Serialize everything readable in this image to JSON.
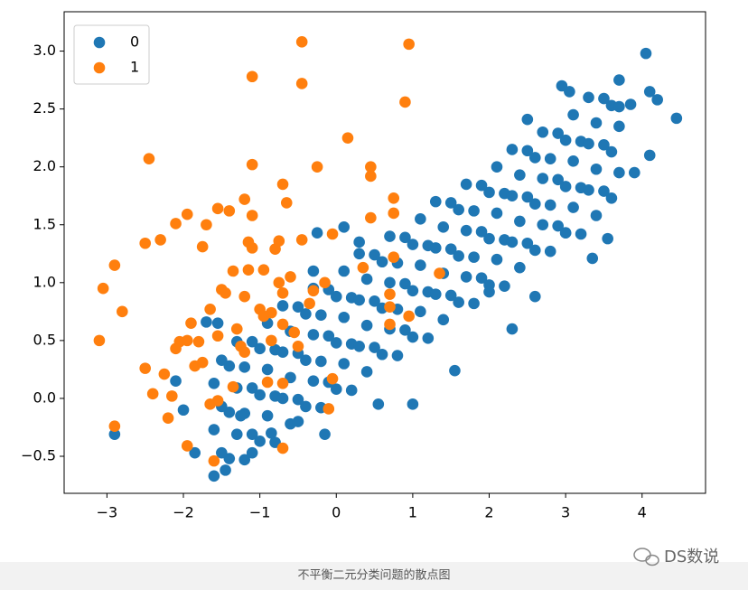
{
  "chart_data": {
    "type": "scatter",
    "xlim": [
      -3.56,
      4.83
    ],
    "ylim": [
      -0.82,
      3.34
    ],
    "xticks": [
      {
        "value": -3,
        "label": "−3"
      },
      {
        "value": -2,
        "label": "−2"
      },
      {
        "value": -1,
        "label": "−1"
      },
      0,
      1,
      2,
      3,
      4
    ],
    "yticks": [
      {
        "value": -0.5,
        "label": "−0.5"
      },
      {
        "value": 0,
        "label": "0.0"
      },
      0.5,
      {
        "value": 1,
        "label": "1.0"
      },
      1.5,
      {
        "value": 2,
        "label": "2.0"
      },
      2.5,
      {
        "value": 3,
        "label": "3.0"
      }
    ],
    "legend": "upper left",
    "series": [
      {
        "name": "0",
        "color": "#1f77b4",
        "x": [
          -1.6,
          -1.4,
          -1.2,
          -1.0,
          -0.8,
          -0.6,
          -0.4,
          -0.2,
          0,
          0.2,
          0.4,
          0.6,
          0.8,
          1.0,
          1.2,
          1.4,
          1.6,
          1.8,
          2.0,
          2.2,
          2.4,
          2.6,
          2.8,
          3.0,
          3.2,
          3.4,
          3.6,
          -1.6,
          -1.4,
          -1.2,
          -1.0,
          -0.8,
          -0.6,
          -0.4,
          -0.2,
          0,
          0.2,
          0.4,
          0.6,
          0.8,
          1.0,
          1.2,
          1.4,
          1.6,
          1.8,
          2.0,
          2.2,
          2.4,
          2.6,
          2.8,
          3.0,
          3.2,
          3.4,
          3.6,
          -1.6,
          -1.4,
          -1.2,
          -1.0,
          -0.8,
          -0.6,
          -0.4,
          -0.2,
          0,
          0.2,
          0.4,
          0.6,
          0.8,
          1.0,
          1.2,
          1.4,
          1.6,
          1.8,
          2.0,
          2.2,
          2.4,
          2.6,
          2.8,
          3.0,
          3.2,
          3.4,
          3.6,
          -1.5,
          -1.3,
          -1.1,
          -0.9,
          -0.7,
          -0.5,
          -0.3,
          -0.1,
          0.1,
          0.3,
          0.5,
          0.7,
          0.9,
          1.1,
          1.3,
          1.5,
          1.7,
          1.9,
          2.1,
          2.3,
          2.5,
          2.7,
          2.9,
          3.1,
          3.3,
          3.5,
          3.7,
          -1.5,
          -1.3,
          -1.1,
          -0.9,
          -0.7,
          -0.5,
          -0.3,
          -0.1,
          0.1,
          0.3,
          0.5,
          0.7,
          0.9,
          1.1,
          1.3,
          1.5,
          1.7,
          1.9,
          2.1,
          2.3,
          2.5,
          2.7,
          2.9,
          3.1,
          3.3,
          3.5,
          3.7,
          -1.5,
          -1.3,
          -1.1,
          -0.9,
          -0.7,
          -0.5,
          -0.3,
          -0.1,
          0.1,
          0.3,
          0.5,
          0.7,
          0.9,
          1.1,
          1.3,
          1.5,
          1.7,
          1.9,
          2.1,
          2.3,
          2.5,
          2.7,
          2.9,
          3.1,
          3.3,
          3.5,
          3.7,
          -2.9,
          -1.45,
          -1.85,
          -1.1,
          -2.0,
          -2.1,
          -1.7,
          -1.55,
          -0.25,
          0.1,
          -0.15,
          1.0,
          1.55,
          2.3,
          2.6,
          3.0,
          3.35,
          4.05,
          4.1,
          4.2,
          4.45,
          3.85,
          3.9,
          4.1,
          2.5,
          2.95,
          3.05,
          3.7,
          -0.5,
          0.55,
          -0.85,
          -1.25,
          3.55,
          2.0,
          -0.3,
          0.3
        ],
        "values": [
          -0.67,
          -0.52,
          -0.53,
          -0.37,
          -0.38,
          -0.22,
          -0.07,
          -0.08,
          0.08,
          0.07,
          0.23,
          0.38,
          0.37,
          0.53,
          0.52,
          0.68,
          0.83,
          0.82,
          0.98,
          0.97,
          1.13,
          1.28,
          1.27,
          1.43,
          1.42,
          1.58,
          1.73,
          -0.27,
          -0.12,
          -0.13,
          0.03,
          0.02,
          0.18,
          0.33,
          0.32,
          0.48,
          0.47,
          0.63,
          0.78,
          0.77,
          0.93,
          0.92,
          1.08,
          1.23,
          1.22,
          1.38,
          1.37,
          1.53,
          1.68,
          1.67,
          1.83,
          1.82,
          1.98,
          2.13,
          0.13,
          0.28,
          0.27,
          0.43,
          0.42,
          0.58,
          0.73,
          0.72,
          0.88,
          0.87,
          1.03,
          1.18,
          1.17,
          1.33,
          1.32,
          1.48,
          1.63,
          1.62,
          1.78,
          1.77,
          1.93,
          2.08,
          2.07,
          2.23,
          2.22,
          2.38,
          2.53,
          -0.47,
          -0.31,
          -0.31,
          -0.15,
          0.0,
          -0.01,
          0.15,
          0.14,
          0.3,
          0.45,
          0.44,
          0.6,
          0.59,
          0.75,
          0.9,
          0.89,
          1.05,
          1.04,
          1.2,
          1.35,
          1.34,
          1.5,
          1.49,
          1.65,
          1.8,
          1.79,
          1.95,
          -0.07,
          0.09,
          0.09,
          0.25,
          0.4,
          0.39,
          0.55,
          0.54,
          0.7,
          0.85,
          0.84,
          1.0,
          0.99,
          1.15,
          1.3,
          1.29,
          1.45,
          1.44,
          1.6,
          1.75,
          1.74,
          1.9,
          1.89,
          2.05,
          2.2,
          2.19,
          2.35,
          0.33,
          0.49,
          0.49,
          0.65,
          0.8,
          0.79,
          0.95,
          0.94,
          1.1,
          1.25,
          1.24,
          1.4,
          1.39,
          1.55,
          1.7,
          1.69,
          1.85,
          1.84,
          2.0,
          2.15,
          2.14,
          2.3,
          2.29,
          2.45,
          2.6,
          2.59,
          2.75,
          -0.31,
          -0.62,
          -0.47,
          -0.47,
          -0.1,
          0.15,
          0.66,
          0.65,
          1.43,
          1.48,
          -0.31,
          -0.05,
          0.24,
          0.6,
          0.88,
          1.43,
          1.21,
          2.98,
          2.65,
          2.58,
          2.42,
          2.54,
          1.95,
          2.1,
          2.41,
          2.7,
          2.65,
          2.52,
          -0.2,
          -0.05,
          -0.3,
          -0.15,
          1.38,
          0.92,
          1.1,
          1.35
        ]
      },
      {
        "name": "1",
        "color": "#ff7f0e",
        "x": [
          -3.1,
          -3.05,
          -2.9,
          -2.8,
          -2.9,
          -2.5,
          -2.45,
          -2.3,
          -2.5,
          -2.4,
          -2.25,
          -2.2,
          -2.15,
          -2.1,
          -2.1,
          -2.05,
          -1.95,
          -1.95,
          -1.85,
          -1.75,
          -1.9,
          -1.8,
          -1.55,
          -1.75,
          -1.7,
          -1.55,
          -1.65,
          -1.5,
          -1.4,
          -1.35,
          -1.45,
          -1.3,
          -1.25,
          -1.2,
          -1.15,
          -1.2,
          -1.1,
          -1.1,
          -1.1,
          -1.1,
          -1.2,
          -1.15,
          -1.0,
          -0.95,
          -0.95,
          -0.85,
          -0.8,
          -0.75,
          -0.7,
          -0.65,
          -0.85,
          -0.75,
          -0.7,
          -0.7,
          -0.6,
          -0.55,
          -0.5,
          -0.45,
          -0.45,
          -0.45,
          -0.25,
          -0.15,
          -0.3,
          -0.35,
          -0.05,
          0.15,
          0.35,
          0.45,
          0.45,
          0.45,
          0.75,
          0.75,
          0.7,
          0.7,
          0.7,
          0.75,
          0.9,
          0.95,
          0.95,
          1.35,
          -0.05,
          -0.1,
          -0.7,
          -0.7,
          -1.6,
          -1.95,
          -1.35,
          -1.55,
          -1.65,
          -0.9
        ],
        "values": [
          0.5,
          0.95,
          1.15,
          0.75,
          -0.24,
          1.34,
          2.07,
          1.37,
          0.26,
          0.04,
          0.21,
          -0.17,
          0.02,
          1.51,
          0.43,
          0.49,
          1.59,
          0.5,
          0.28,
          0.31,
          0.65,
          0.49,
          0.54,
          1.31,
          1.5,
          1.64,
          0.77,
          0.94,
          1.62,
          1.1,
          0.91,
          0.6,
          0.45,
          1.72,
          1.35,
          0.4,
          2.78,
          2.02,
          1.58,
          1.3,
          0.88,
          1.11,
          0.77,
          0.71,
          1.11,
          0.74,
          1.29,
          1.36,
          1.85,
          1.69,
          0.5,
          1.0,
          0.91,
          0.64,
          1.05,
          0.57,
          0.45,
          2.72,
          3.08,
          1.37,
          2.0,
          1.0,
          0.93,
          0.82,
          1.42,
          2.25,
          1.13,
          2.0,
          1.92,
          1.56,
          1.73,
          1.6,
          0.9,
          0.79,
          0.64,
          1.22,
          2.56,
          3.06,
          0.71,
          1.08,
          0.17,
          -0.09,
          0.13,
          -0.43,
          -0.54,
          -0.41,
          0.1,
          -0.02,
          -0.05,
          0.14
        ]
      }
    ]
  },
  "caption": "不平衡二元分类问题的散点图",
  "watermark": "DS数说"
}
